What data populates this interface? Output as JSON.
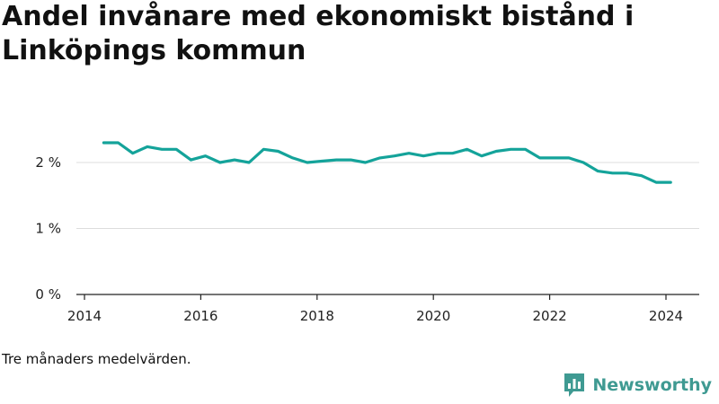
{
  "header": {
    "title": "Andel invånare med ekonomiskt bistånd i Linköpings kommun"
  },
  "chart_data": {
    "type": "line",
    "title": "Andel invånare med ekonomiskt bistånd i Linköpings kommun",
    "xlabel": "",
    "ylabel": "",
    "xlim": [
      2014,
      2024.6
    ],
    "ylim": [
      0,
      2.6
    ],
    "grid": true,
    "y_ticks": [
      {
        "value": 0,
        "label": "0 %"
      },
      {
        "value": 1,
        "label": "1 %"
      },
      {
        "value": 2,
        "label": "2 %"
      }
    ],
    "x_ticks": [
      {
        "value": 2014,
        "label": "2014"
      },
      {
        "value": 2016,
        "label": "2016"
      },
      {
        "value": 2018,
        "label": "2018"
      },
      {
        "value": 2020,
        "label": "2020"
      },
      {
        "value": 2022,
        "label": "2022"
      },
      {
        "value": 2024,
        "label": "2024"
      }
    ],
    "series": [
      {
        "name": "Andel invånare med ekonomiskt bistånd",
        "color": "#14a39a",
        "x": [
          2014.33,
          2014.58,
          2014.83,
          2015.08,
          2015.33,
          2015.58,
          2015.83,
          2016.08,
          2016.33,
          2016.58,
          2016.83,
          2017.08,
          2017.33,
          2017.58,
          2017.83,
          2018.08,
          2018.33,
          2018.58,
          2018.83,
          2019.08,
          2019.33,
          2019.58,
          2019.83,
          2020.08,
          2020.33,
          2020.58,
          2020.83,
          2021.08,
          2021.33,
          2021.58,
          2021.83,
          2022.08,
          2022.33,
          2022.58,
          2022.83,
          2023.08,
          2023.33,
          2023.58,
          2023.83,
          2024.08
        ],
        "values": [
          2.3,
          2.3,
          2.14,
          2.24,
          2.2,
          2.2,
          2.04,
          2.1,
          2.0,
          2.04,
          2.0,
          2.2,
          2.17,
          2.07,
          2.0,
          2.02,
          2.04,
          2.04,
          2.0,
          2.07,
          2.1,
          2.14,
          2.1,
          2.14,
          2.14,
          2.2,
          2.1,
          2.17,
          2.2,
          2.2,
          2.07,
          2.07,
          2.07,
          2.0,
          1.87,
          1.84,
          1.84,
          1.8,
          1.7,
          1.7
        ]
      }
    ]
  },
  "footer": {
    "note": "Tre månaders medelvärden.",
    "brand_name": "Newsworthy",
    "brand_color": "#3f9a92"
  }
}
